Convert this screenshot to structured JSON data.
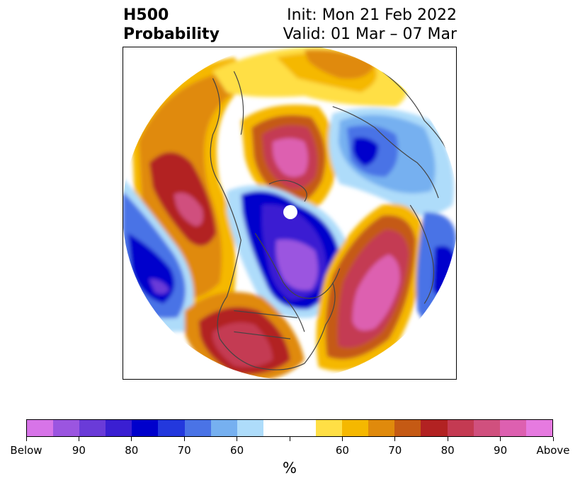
{
  "title": {
    "left_line1": "H500",
    "left_line2": "Probability",
    "right_line1": "Init: Mon 21 Feb 2022",
    "right_line2": "Valid: 01 Mar – 07 Mar"
  },
  "colorbar": {
    "colors": [
      "#d774e8",
      "#9b55e0",
      "#6a3bd8",
      "#3a1fd2",
      "#0000cc",
      "#2338dd",
      "#4a73e6",
      "#76b0f0",
      "#aedcfa",
      "#ffffff",
      "#ffffff",
      "#ffdf45",
      "#f5b800",
      "#e08a0c",
      "#c55a14",
      "#b22222",
      "#c43a52",
      "#d0507e",
      "#dd60b0",
      "#e67ae0"
    ],
    "tick_labels": [
      "Below",
      "90",
      "80",
      "70",
      "60",
      "",
      "60",
      "70",
      "80",
      "90",
      "Above"
    ],
    "unit": "%"
  }
}
